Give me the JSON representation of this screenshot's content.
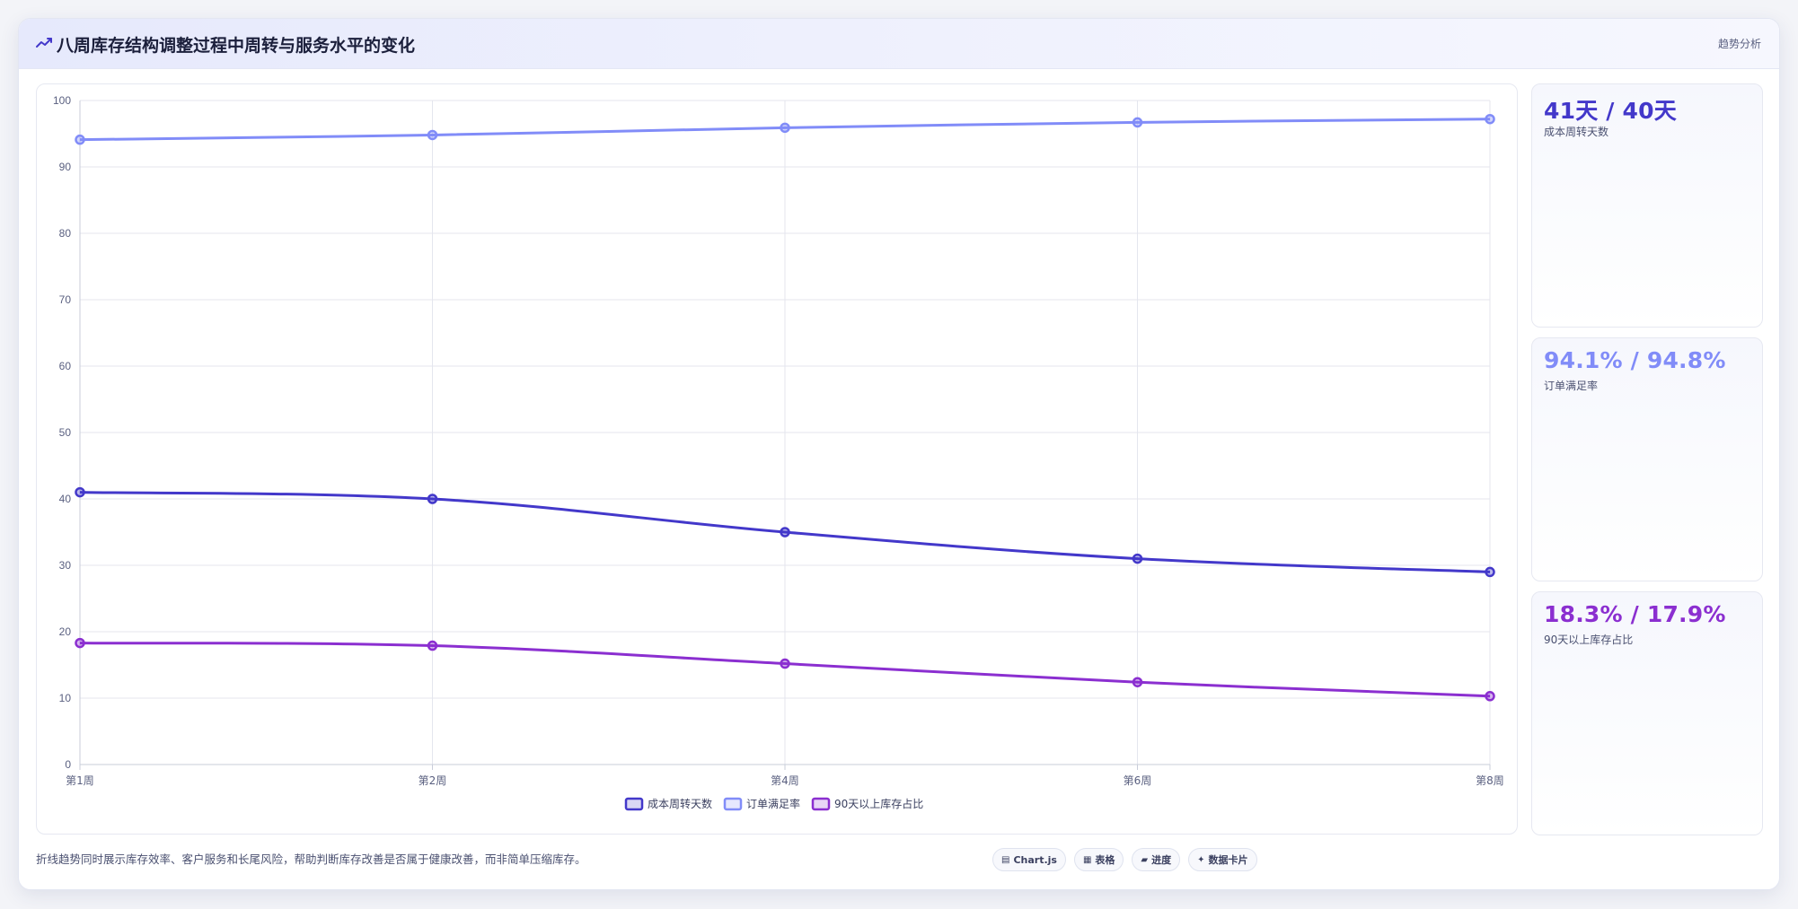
{
  "header": {
    "icon": "trend-line-icon",
    "title": "八周库存结构调整过程中周转与服务水平的变化",
    "tag": "趋势分析"
  },
  "chart_data": {
    "type": "line",
    "categories": [
      "第1周",
      "第2周",
      "第4周",
      "第6周",
      "第8周"
    ],
    "ylim": [
      0,
      100
    ],
    "yticks": [
      0,
      10,
      20,
      30,
      40,
      50,
      60,
      70,
      80,
      90,
      100
    ],
    "grid": true,
    "legend_position": "bottom",
    "series": [
      {
        "name": "成本周转天数",
        "color": "#4338ca",
        "values": [
          41,
          40,
          35,
          31,
          29
        ]
      },
      {
        "name": "订单满足率",
        "color": "#818cf8",
        "values": [
          94.1,
          94.8,
          95.9,
          96.7,
          97.2
        ]
      },
      {
        "name": "90天以上库存占比",
        "color": "#8b2fd0",
        "values": [
          18.3,
          17.9,
          15.2,
          12.4,
          10.3
        ]
      }
    ]
  },
  "kpis": [
    {
      "value": "41天 / 40天",
      "label": "成本周转天数",
      "color": "#4338ca"
    },
    {
      "value": "94.1% / 94.8%",
      "label": "订单满足率",
      "color": "#818cf8"
    },
    {
      "value": "18.3% / 17.9%",
      "label": "90天以上库存占比",
      "color": "#8b2fd0"
    }
  ],
  "footer": {
    "note": "折线趋势同时展示库存效率、客户服务和长尾风险，帮助判断库存改善是否属于健康改善，而非简单压缩库存。",
    "pills": [
      {
        "icon": "chart-icon",
        "glyph": "▤",
        "label": "Chart.js"
      },
      {
        "icon": "table-icon",
        "glyph": "▦",
        "label": "表格"
      },
      {
        "icon": "progress-icon",
        "glyph": "▰",
        "label": "进度"
      },
      {
        "icon": "sparkle-icon",
        "glyph": "✦",
        "label": "数据卡片"
      }
    ]
  }
}
